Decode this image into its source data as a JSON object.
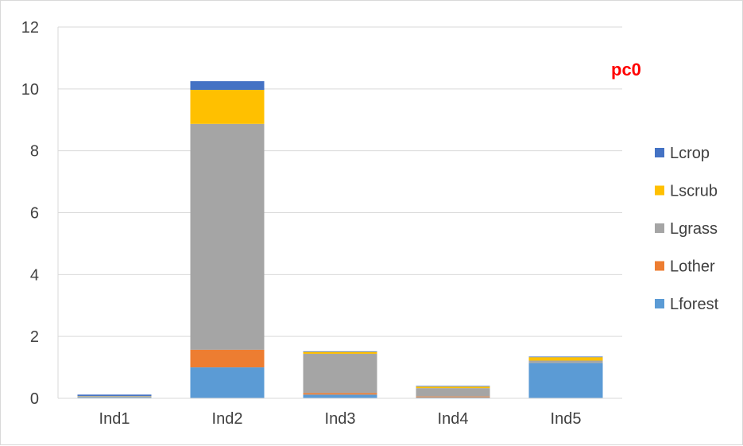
{
  "chart_data": {
    "type": "bar",
    "stacked": true,
    "categories": [
      "Ind1",
      "Ind2",
      "Ind3",
      "Ind4",
      "Ind5"
    ],
    "series": [
      {
        "name": "Lforest",
        "color": "#5b9bd5",
        "values": [
          0.03,
          1.0,
          0.12,
          0.03,
          1.14
        ]
      },
      {
        "name": "Lother",
        "color": "#ed7d31",
        "values": [
          0.0,
          0.57,
          0.05,
          0.03,
          0.0
        ]
      },
      {
        "name": "Lgrass",
        "color": "#a5a5a5",
        "values": [
          0.03,
          7.3,
          1.27,
          0.27,
          0.08
        ]
      },
      {
        "name": "Lscrub",
        "color": "#ffc000",
        "values": [
          0.01,
          1.1,
          0.06,
          0.05,
          0.11
        ]
      },
      {
        "name": "Lcrop",
        "color": "#4472c4",
        "values": [
          0.05,
          0.28,
          0.02,
          0.02,
          0.02
        ]
      }
    ],
    "yticks": [
      "0",
      "2",
      "4",
      "6",
      "8",
      "10",
      "12"
    ],
    "ylim": [
      0,
      12
    ],
    "grid": true,
    "legend_position": "right",
    "legend_order": [
      "Lcrop",
      "Lscrub",
      "Lgrass",
      "Lother",
      "Lforest"
    ],
    "annotation": {
      "text": "pc0",
      "color": "#ff0000"
    }
  }
}
